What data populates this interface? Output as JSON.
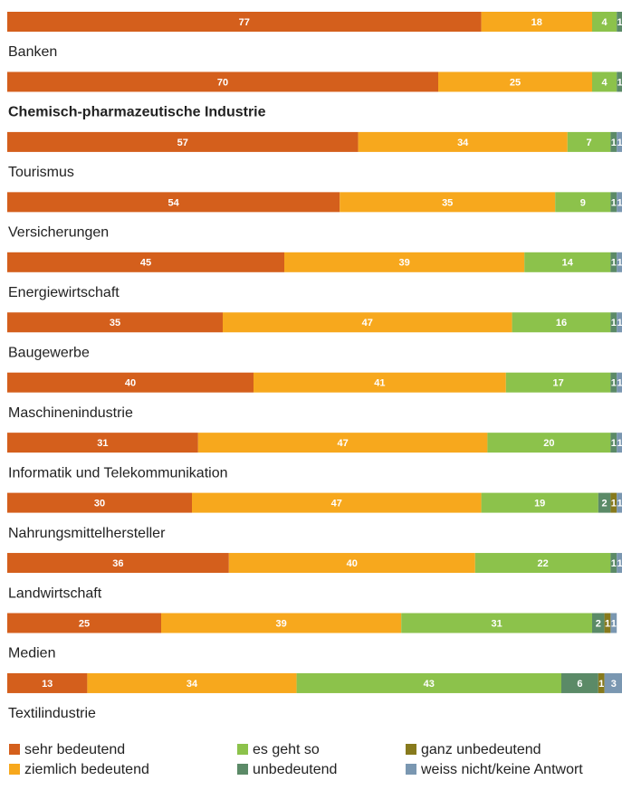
{
  "chart_data": {
    "type": "stacked-bar-horizontal",
    "categories": [
      null,
      "Banken",
      "Chemisch-pharmazeutische Industrie",
      "Tourismus",
      "Versicherungen",
      "Energiewirtschaft",
      "Baugewerbe",
      "Maschinenindustrie",
      "Informatik und Telekommunikation",
      "Nahrungsmittelhersteller",
      "Landwirtschaft",
      "Medien",
      "Textilindustrie"
    ],
    "xlim": [
      0,
      100
    ],
    "series": [
      {
        "name": "sehr bedeutend",
        "color": "#d45f1c",
        "values": [
          77,
          70,
          57,
          54,
          45,
          35,
          40,
          31,
          30,
          36,
          25,
          13,
          null
        ]
      },
      {
        "name": "ziemlich bedeutend",
        "color": "#f7a81d",
        "values": [
          18,
          25,
          34,
          35,
          39,
          47,
          41,
          47,
          47,
          40,
          39,
          34,
          null
        ]
      },
      {
        "name": "es geht so",
        "color": "#8cc24b",
        "values": [
          4,
          4,
          7,
          9,
          14,
          16,
          17,
          20,
          19,
          22,
          31,
          43,
          null
        ]
      },
      {
        "name": "unbedeutend",
        "color": "#5b8a67",
        "values": [
          1,
          1,
          1,
          1,
          1,
          1,
          1,
          1,
          2,
          1,
          2,
          6,
          null
        ]
      },
      {
        "name": "ganz unbedeutend",
        "color": "#877a1d",
        "values": [
          null,
          null,
          null,
          null,
          null,
          null,
          null,
          null,
          1,
          null,
          1,
          1,
          null
        ]
      },
      {
        "name": "weiss nicht/keine Antwort",
        "color": "#7a97b1",
        "values": [
          null,
          null,
          1,
          1,
          1,
          1,
          1,
          1,
          1,
          1,
          1,
          3,
          null
        ]
      }
    ],
    "legend": "bottom"
  }
}
